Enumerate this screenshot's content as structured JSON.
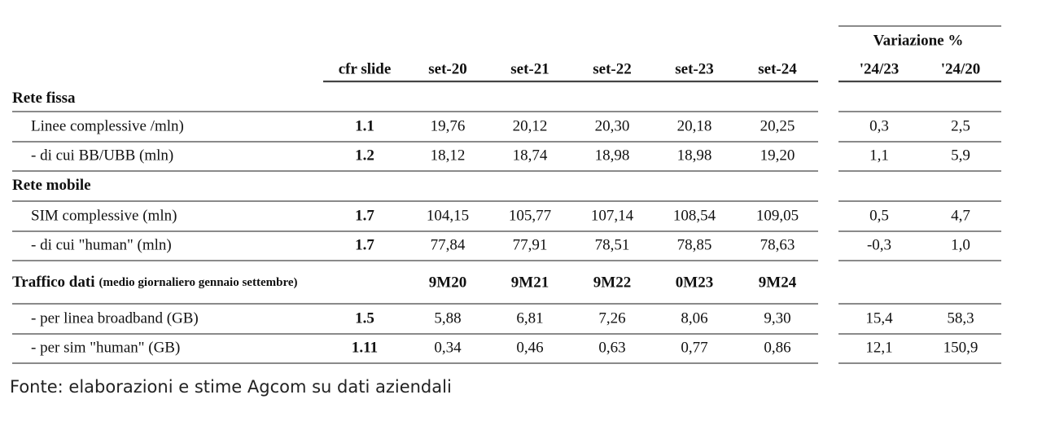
{
  "header": {
    "variation_title": "Variazione %",
    "columns": [
      "cfr slide",
      "set-20",
      "set-21",
      "set-22",
      "set-23",
      "set-24",
      "'24/23",
      "'24/20"
    ]
  },
  "sections": [
    {
      "title": "Rete fissa",
      "rows": [
        {
          "label": "Linee complessive /mln)",
          "cells": [
            "1.1",
            "19,76",
            "20,12",
            "20,30",
            "20,18",
            "20,25",
            "0,3",
            "2,5"
          ]
        },
        {
          "label": "- di cui BB/UBB (mln)",
          "cells": [
            "1.2",
            "18,12",
            "18,74",
            "18,98",
            "18,98",
            "19,20",
            "1,1",
            "5,9"
          ]
        }
      ]
    },
    {
      "title": "Rete mobile",
      "rows": [
        {
          "label": "SIM complessive (mln)",
          "cells": [
            "1.7",
            "104,15",
            "105,77",
            "107,14",
            "108,54",
            "109,05",
            "0,5",
            "4,7"
          ]
        },
        {
          "label": "- di cui \"human\" (mln)",
          "cells": [
            "1.7",
            "77,84",
            "77,91",
            "78,51",
            "78,85",
            "78,63",
            "-0,3",
            "1,0"
          ]
        }
      ]
    },
    {
      "title": "Traffico dati",
      "subtitle": "(medio giornaliero gennaio settembre)",
      "columns": [
        "9M20",
        "9M21",
        "9M22",
        "0M23",
        "9M24"
      ],
      "rows": [
        {
          "label": "- per linea broadband (GB)",
          "cells": [
            "1.5",
            "5,88",
            "6,81",
            "7,26",
            "8,06",
            "9,30",
            "15,4",
            "58,3"
          ]
        },
        {
          "label": "- per sim \"human\" (GB)",
          "cells": [
            "1.11",
            "0,34",
            "0,46",
            "0,63",
            "0,77",
            "0,86",
            "12,1",
            "150,9"
          ]
        }
      ]
    }
  ],
  "footer": "Fonte: elaborazioni e stime Agcom su dati aziendali"
}
